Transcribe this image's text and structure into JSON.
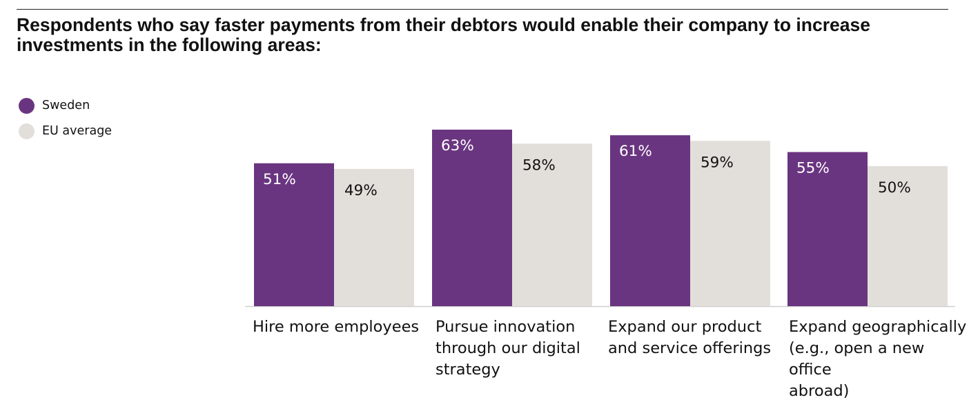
{
  "colors": {
    "sweden": "#6a3580",
    "eu_average": "#e2dfdb",
    "axis": "#cfcfcf",
    "label_on_dark": "#ffffff",
    "label_on_light": "#111111"
  },
  "chart_data": {
    "type": "bar",
    "title": "Respondents who say faster payments from their debtors would enable their company to increase investments in the following areas:",
    "categories": [
      "Hire more employees",
      "Pursue innovation\nthrough our digital\nstrategy",
      "Expand our product\nand service offerings",
      "Expand geographically\n(e.g., open a new office\nabroad)"
    ],
    "series": [
      {
        "name": "Sweden",
        "values": [
          51,
          63,
          61,
          55
        ],
        "labels": [
          "51%",
          "63%",
          "61%",
          "55%"
        ]
      },
      {
        "name": "EU average",
        "values": [
          49,
          58,
          59,
          50
        ],
        "labels": [
          "49%",
          "58%",
          "59%",
          "50%"
        ]
      }
    ],
    "ylim": [
      0,
      63
    ],
    "grid": false,
    "legend_position": "top-left"
  }
}
